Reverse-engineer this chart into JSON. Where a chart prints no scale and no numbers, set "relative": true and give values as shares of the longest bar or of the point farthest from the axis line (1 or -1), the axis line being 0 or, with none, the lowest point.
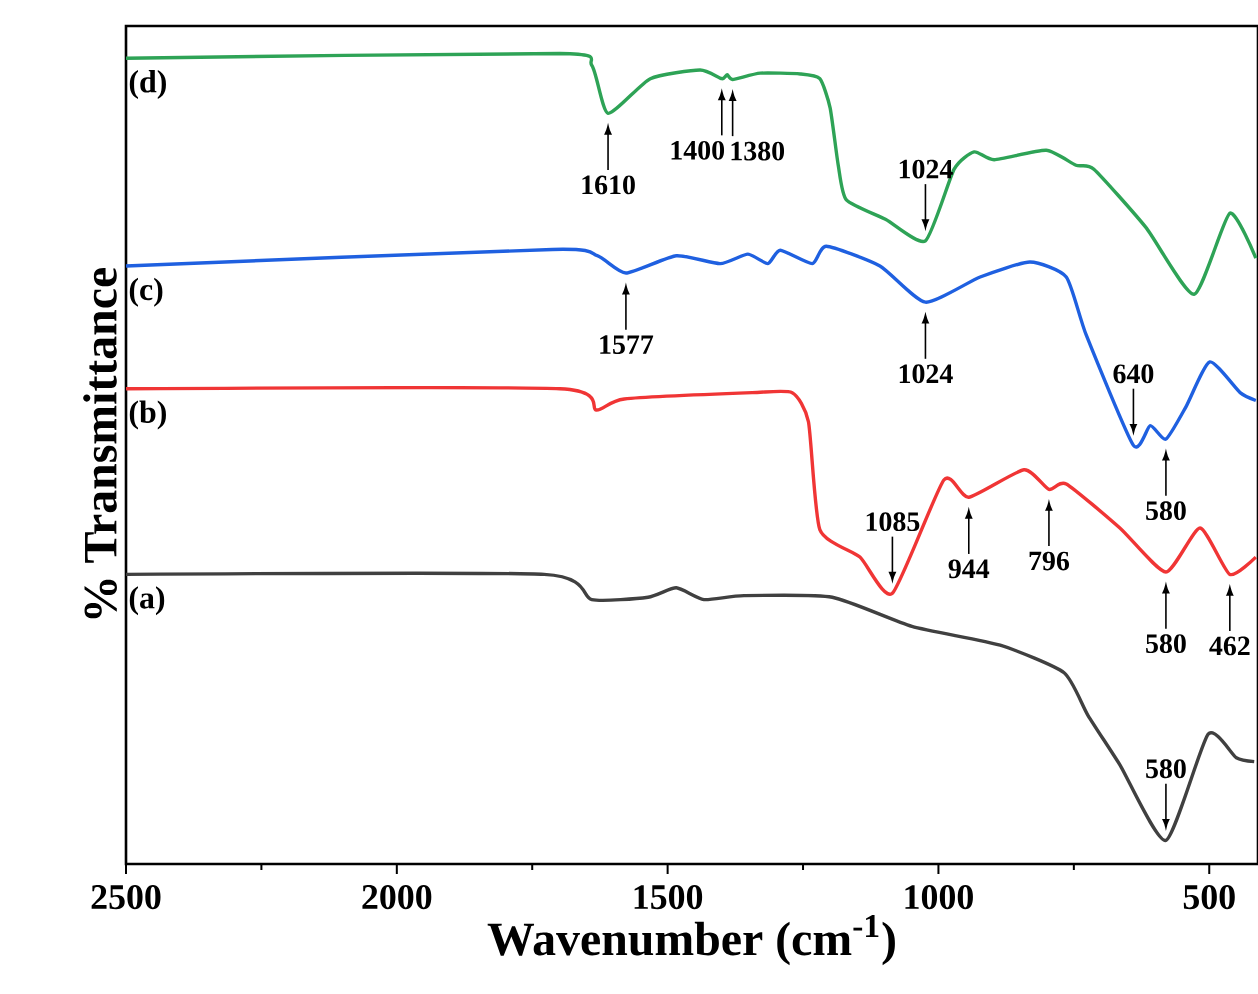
{
  "chart_data": {
    "type": "line",
    "xlabel": "Wavenumber (cm$^{-1}$)",
    "ylabel": "% Transmittance",
    "relative": true,
    "xlim": [
      2500,
      410
    ],
    "xticks": [
      2500,
      2000,
      1500,
      1000,
      500
    ],
    "legend": false,
    "marker": "none",
    "line_style": "solid",
    "series": [
      {
        "name": "(d)",
        "color": "#2ea356",
        "x": [
          2500,
          1699,
          1640,
          1610,
          1532,
          1440,
          1400,
          1390,
          1380,
          1329,
          1255,
          1219,
          1200,
          1185,
          1170,
          1097,
          1024,
          971,
          934,
          897,
          801,
          746,
          713,
          617,
          528,
          462,
          414
        ],
        "values": [
          0.994,
          1.0,
          0.985,
          0.924,
          0.968,
          0.979,
          0.968,
          0.973,
          0.967,
          0.975,
          0.974,
          0.968,
          0.931,
          0.858,
          0.814,
          0.789,
          0.762,
          0.853,
          0.875,
          0.865,
          0.877,
          0.858,
          0.853,
          0.779,
          0.694,
          0.797,
          0.74
        ]
      },
      {
        "name": "(c)",
        "color": "#1f60e0",
        "x": [
          2500,
          1713,
          1630,
          1577,
          1484,
          1403,
          1352,
          1315,
          1292,
          1233,
          1207,
          1108,
          1024,
          923,
          831,
          764,
          727,
          640,
          609,
          580,
          543,
          499,
          443,
          414
        ],
        "values": [
          0.73,
          0.751,
          0.743,
          0.721,
          0.743,
          0.733,
          0.745,
          0.733,
          0.75,
          0.733,
          0.755,
          0.73,
          0.684,
          0.716,
          0.735,
          0.716,
          0.642,
          0.502,
          0.527,
          0.51,
          0.551,
          0.608,
          0.569,
          0.559
        ]
      },
      {
        "name": "(b)",
        "color": "#f03535",
        "x": [
          2500,
          1699,
          1632,
          1580,
          1344,
          1270,
          1240,
          1219,
          1145,
          1085,
          990,
          944,
          842,
          796,
          764,
          665,
          580,
          517,
          462,
          414
        ],
        "values": [
          0.574,
          0.574,
          0.547,
          0.561,
          0.569,
          0.569,
          0.532,
          0.395,
          0.36,
          0.314,
          0.458,
          0.436,
          0.471,
          0.446,
          0.453,
          0.397,
          0.341,
          0.397,
          0.338,
          0.36
        ]
      },
      {
        "name": "(a)",
        "color": "#404040",
        "x": [
          2500,
          1728,
          1640,
          1536,
          1484,
          1433,
          1359,
          1196,
          1049,
          886,
          768,
          724,
          665,
          580,
          502,
          450,
          417
        ],
        "values": [
          0.338,
          0.338,
          0.306,
          0.309,
          0.321,
          0.306,
          0.311,
          0.309,
          0.272,
          0.248,
          0.213,
          0.159,
          0.096,
          0.0,
          0.135,
          0.105,
          0.1
        ]
      }
    ],
    "annotations": [
      {
        "text": "1610",
        "x": 1610,
        "y": 0.924
      },
      {
        "text": "1400",
        "x": 1400,
        "y": 0.968
      },
      {
        "text": "1380",
        "x": 1380,
        "y": 0.967
      },
      {
        "text": "1024",
        "x": 1024,
        "y": 0.762
      },
      {
        "text": "1577",
        "x": 1577,
        "y": 0.721
      },
      {
        "text": "1024",
        "x": 1024,
        "y": 0.684
      },
      {
        "text": "640",
        "x": 640,
        "y": 0.502
      },
      {
        "text": "580",
        "x": 580,
        "y": 0.51
      },
      {
        "text": "1085",
        "x": 1085,
        "y": 0.314
      },
      {
        "text": "944",
        "x": 944,
        "y": 0.436
      },
      {
        "text": "796",
        "x": 796,
        "y": 0.446
      },
      {
        "text": "580",
        "x": 580,
        "y": 0.341
      },
      {
        "text": "462",
        "x": 462,
        "y": 0.338
      },
      {
        "text": "580",
        "x": 580,
        "y": 0.0
      }
    ]
  }
}
